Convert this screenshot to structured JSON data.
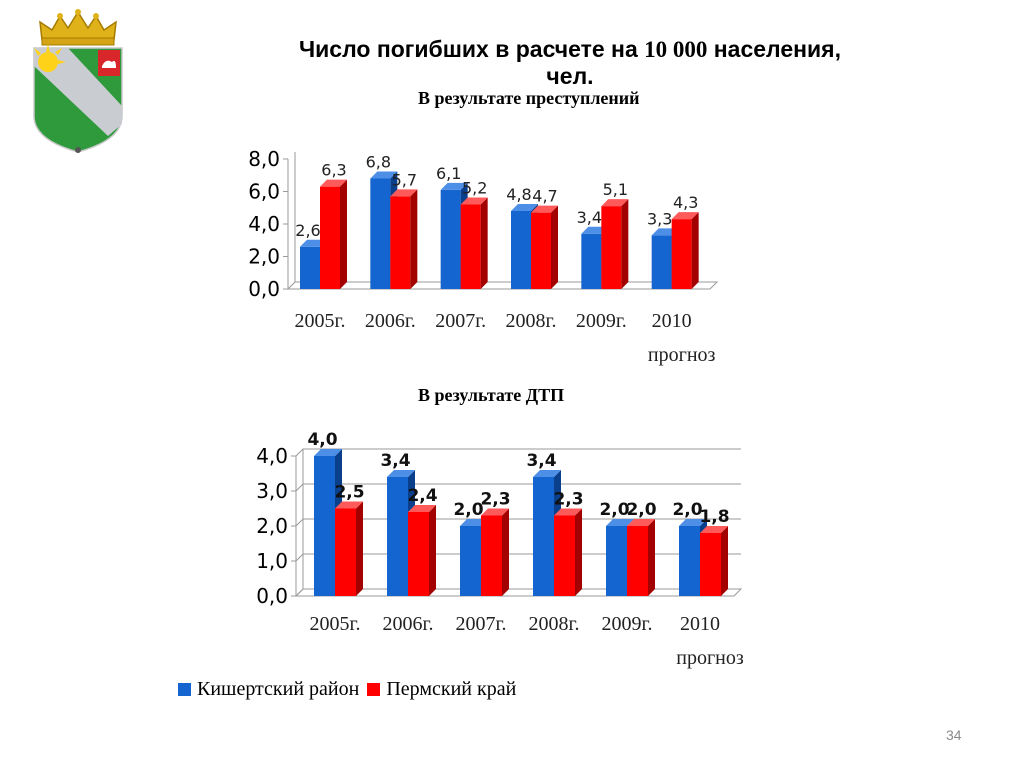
{
  "slide": {
    "title_part1": "Число погибших в расчете на ",
    "title_number": "10 000",
    "title_part2": " населения,",
    "title_line2": "чел.",
    "page_number": "34"
  },
  "legend": {
    "series1": "Кишертский район",
    "series2": "Пермский край",
    "color1": "#1565d0",
    "color2": "#ff0000"
  },
  "chart_data": [
    {
      "type": "bar",
      "title": "В результате преступлений",
      "categories": [
        "2005г.",
        "2006г.",
        "2007г.",
        "2008г.",
        "2009г.",
        "2010 прогноз"
      ],
      "category_lines": [
        [
          "2005г."
        ],
        [
          "2006г."
        ],
        [
          "2007г."
        ],
        [
          "2008г."
        ],
        [
          "2009г."
        ],
        [
          "2010",
          "прогноз"
        ]
      ],
      "series": [
        {
          "name": "Кишертский район",
          "values": [
            2.6,
            6.8,
            6.1,
            4.8,
            3.4,
            3.3
          ],
          "labels": [
            "2,6",
            "6,8",
            "6,1",
            "4,8",
            "3,4",
            "3,3"
          ]
        },
        {
          "name": "Пермский край",
          "values": [
            6.3,
            5.7,
            5.2,
            4.7,
            5.1,
            4.3
          ],
          "labels": [
            "6,3",
            "5,7",
            "5,2",
            "4,7",
            "5,1",
            "4,3"
          ]
        }
      ],
      "yticks": [
        "0,0",
        "2,0",
        "4,0",
        "6,0",
        "8,0"
      ],
      "ylim": [
        0,
        8
      ],
      "grid": false
    },
    {
      "type": "bar",
      "title": "В результате ДТП",
      "categories": [
        "2005г.",
        "2006г.",
        "2007г.",
        "2008г.",
        "2009г.",
        "2010 прогноз"
      ],
      "category_lines": [
        [
          "2005г."
        ],
        [
          "2006г."
        ],
        [
          "2007г."
        ],
        [
          "2008г."
        ],
        [
          "2009г."
        ],
        [
          "2010",
          "прогноз"
        ]
      ],
      "series": [
        {
          "name": "Кишертский район",
          "values": [
            4.0,
            3.4,
            2.0,
            3.4,
            2.0,
            2.0
          ],
          "labels": [
            "4,0",
            "3,4",
            "2,0",
            "3,4",
            "2,0",
            "2,0"
          ]
        },
        {
          "name": "Пермский край",
          "values": [
            2.5,
            2.4,
            2.3,
            2.3,
            2.0,
            1.8
          ],
          "labels": [
            "2,5",
            "2,4",
            "2,3",
            "2,3",
            "2,0",
            "1,8"
          ]
        }
      ],
      "yticks": [
        "0,0",
        "1,0",
        "2,0",
        "3,0",
        "4,0"
      ],
      "ylim": [
        0,
        4
      ],
      "grid": true,
      "legend": "bottom"
    }
  ]
}
